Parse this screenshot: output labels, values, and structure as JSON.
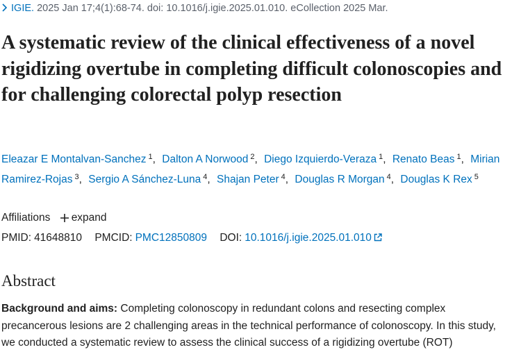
{
  "citation": {
    "journal": "IGIE.",
    "details": "2025 Jan 17;4(1):68-74. doi: 10.1016/j.igie.2025.01.010. eCollection 2025 Mar."
  },
  "title": "A systematic review of the clinical effectiveness of a novel rigidizing overtube in completing difficult colonoscopies and for challenging colorectal polyp resection",
  "authors": {
    "separator": ",",
    "list": [
      {
        "name": "Eleazar E Montalvan-Sanchez",
        "affiliation": "1"
      },
      {
        "name": "Dalton A Norwood",
        "affiliation": "2"
      },
      {
        "name": "Diego Izquierdo-Veraza",
        "affiliation": "1"
      },
      {
        "name": "Renato Beas",
        "affiliation": "1"
      },
      {
        "name": "Mirian Ramirez-Rojas",
        "affiliation": "3"
      },
      {
        "name": "Sergio A Sánchez-Luna",
        "affiliation": "4"
      },
      {
        "name": "Shajan Peter",
        "affiliation": "4"
      },
      {
        "name": "Douglas R Morgan",
        "affiliation": "4"
      },
      {
        "name": "Douglas K Rex",
        "affiliation": "5"
      }
    ]
  },
  "affiliations": {
    "label": "Affiliations",
    "toggle": "expand"
  },
  "identifiers": {
    "pmid": {
      "label": "PMID:",
      "value": "41648810"
    },
    "pmcid": {
      "label": "PMCID:",
      "value": "PMC12850809"
    },
    "doi": {
      "label": "DOI:",
      "value": "10.1016/j.igie.2025.01.010"
    }
  },
  "abstract": {
    "heading": "Abstract",
    "sections": [
      {
        "label": "Background and aims:",
        "text": "Completing colonoscopy in redundant colons and resecting complex precancerous lesions are 2 challenging areas in the technical performance of colonoscopy. In this study, we conducted a systematic review to assess the clinical success of a rigidizing overtube (ROT)"
      }
    ]
  }
}
